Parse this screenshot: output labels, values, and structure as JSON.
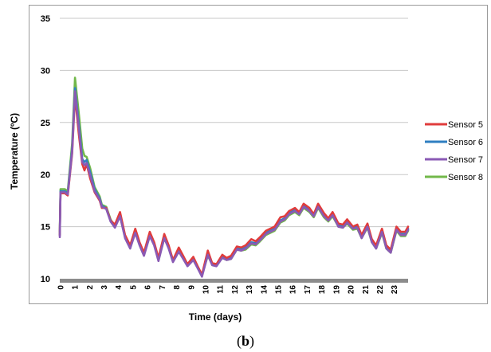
{
  "caption": {
    "open": "(",
    "label": "b",
    "close": ")"
  },
  "chart_data": {
    "type": "line",
    "title": "",
    "xlabel": "Time (days)",
    "ylabel": "Temperature (ºC)",
    "xlim": [
      0,
      24
    ],
    "ylim": [
      10,
      35
    ],
    "yticks": [
      10,
      15,
      20,
      25,
      30,
      35
    ],
    "xticks": [
      "0",
      "1",
      "2",
      "3",
      "4",
      "5",
      "6",
      "7",
      "8",
      "9",
      "10",
      "11",
      "12",
      "13",
      "14",
      "15",
      "16",
      "17",
      "18",
      "19",
      "20",
      "21",
      "22",
      "23"
    ],
    "grid": "horizontal",
    "legend_position": "right",
    "series": [
      {
        "name": "Sensor 5",
        "color": "#e03c3c",
        "x": [
          0,
          0.05,
          0.35,
          0.55,
          0.85,
          1.05,
          1.3,
          1.55,
          1.7,
          1.85,
          2.1,
          2.4,
          2.75,
          2.9,
          3.2,
          3.5,
          3.8,
          4.15,
          4.5,
          4.85,
          5.2,
          5.5,
          5.8,
          6.2,
          6.5,
          6.8,
          7.2,
          7.5,
          7.8,
          8.2,
          8.5,
          8.8,
          9.2,
          9.5,
          9.8,
          10.2,
          10.5,
          10.8,
          11.2,
          11.5,
          11.8,
          12.2,
          12.5,
          12.8,
          13.2,
          13.5,
          13.8,
          14.2,
          14.5,
          14.8,
          15.2,
          15.5,
          15.8,
          16.2,
          16.5,
          16.8,
          17.2,
          17.5,
          17.8,
          18.2,
          18.5,
          18.8,
          19.2,
          19.5,
          19.8,
          20.2,
          20.5,
          20.8,
          21.2,
          21.5,
          21.8,
          22.2,
          22.5,
          22.8,
          23.2,
          23.5,
          23.8,
          24
        ],
        "y": [
          14.2,
          18.2,
          18.2,
          18.0,
          22,
          27.6,
          24,
          21,
          20.4,
          21,
          19.6,
          18.3,
          17.5,
          16.8,
          16.8,
          15.6,
          15.2,
          16.4,
          14.2,
          13.2,
          14.8,
          13.5,
          12.5,
          14.5,
          13.5,
          12,
          14.3,
          13.2,
          11.8,
          13,
          12.2,
          11.4,
          12.1,
          11.2,
          10.4,
          12.7,
          11.5,
          11.4,
          12.3,
          12,
          12.2,
          13.1,
          13,
          13.2,
          13.8,
          13.6,
          14,
          14.6,
          14.8,
          15,
          15.9,
          16,
          16.5,
          16.8,
          16.4,
          17.2,
          16.8,
          16.2,
          17.2,
          16.3,
          15.8,
          16.4,
          15.3,
          15.2,
          15.7,
          15,
          15.2,
          14.2,
          15.3,
          13.8,
          13.2,
          14.8,
          13.2,
          12.8,
          15,
          14.5,
          14.5,
          15
        ]
      },
      {
        "name": "Sensor 6",
        "color": "#2f7fc1",
        "x": [
          0,
          0.05,
          0.35,
          0.55,
          0.85,
          1.05,
          1.3,
          1.55,
          1.7,
          1.85,
          2.1,
          2.4,
          2.75,
          2.9,
          3.2,
          3.5,
          3.8,
          4.15,
          4.5,
          4.85,
          5.2,
          5.5,
          5.8,
          6.2,
          6.5,
          6.8,
          7.2,
          7.5,
          7.8,
          8.2,
          8.5,
          8.8,
          9.2,
          9.5,
          9.8,
          10.2,
          10.5,
          10.8,
          11.2,
          11.5,
          11.8,
          12.2,
          12.5,
          12.8,
          13.2,
          13.5,
          13.8,
          14.2,
          14.5,
          14.8,
          15.2,
          15.5,
          15.8,
          16.2,
          16.5,
          16.8,
          17.2,
          17.5,
          17.8,
          18.2,
          18.5,
          18.8,
          19.2,
          19.5,
          19.8,
          20.2,
          20.5,
          20.8,
          21.2,
          21.5,
          21.8,
          22.2,
          22.5,
          22.8,
          23.2,
          23.5,
          23.8,
          24
        ],
        "y": [
          14.2,
          18.4,
          18.4,
          18.2,
          22.5,
          28.3,
          25,
          21.5,
          21.2,
          21.4,
          20.2,
          18.6,
          17.7,
          17.0,
          16.8,
          15.6,
          15.0,
          16.1,
          14.0,
          13.0,
          14.5,
          13.3,
          12.3,
          14.2,
          13.3,
          11.8,
          14.0,
          13.0,
          11.7,
          12.7,
          12.0,
          11.3,
          11.9,
          11.1,
          10.3,
          12.4,
          11.4,
          11.3,
          12.1,
          11.9,
          12.0,
          12.9,
          12.8,
          13.0,
          13.5,
          13.4,
          13.8,
          14.4,
          14.6,
          14.8,
          15.6,
          15.8,
          16.3,
          16.6,
          16.3,
          17.0,
          16.6,
          16.1,
          17.0,
          16.1,
          15.7,
          16.2,
          15.1,
          15.0,
          15.5,
          14.9,
          15.0,
          14.0,
          15.1,
          13.6,
          13.0,
          14.6,
          13.0,
          12.6,
          14.8,
          14.3,
          14.3,
          14.8
        ]
      },
      {
        "name": "Sensor 7",
        "color": "#8a5ab4",
        "x": [
          0,
          0.05,
          0.35,
          0.55,
          0.85,
          1.05,
          1.3,
          1.55,
          1.7,
          1.85,
          2.1,
          2.4,
          2.75,
          2.9,
          3.2,
          3.5,
          3.8,
          4.15,
          4.5,
          4.85,
          5.2,
          5.5,
          5.8,
          6.2,
          6.5,
          6.8,
          7.2,
          7.5,
          7.8,
          8.2,
          8.5,
          8.8,
          9.2,
          9.5,
          9.8,
          10.2,
          10.5,
          10.8,
          11.2,
          11.5,
          11.8,
          12.2,
          12.5,
          12.8,
          13.2,
          13.5,
          13.8,
          14.2,
          14.5,
          14.8,
          15.2,
          15.5,
          15.8,
          16.2,
          16.5,
          16.8,
          17.2,
          17.5,
          17.8,
          18.2,
          18.5,
          18.8,
          19.2,
          19.5,
          19.8,
          20.2,
          20.5,
          20.8,
          21.2,
          21.5,
          21.8,
          22.2,
          22.5,
          22.8,
          23.2,
          23.5,
          23.8,
          24
        ],
        "y": [
          14.0,
          18.3,
          18.3,
          18.1,
          22.2,
          28.0,
          24.6,
          21.2,
          20.9,
          21.1,
          19.9,
          18.4,
          17.6,
          16.9,
          16.7,
          15.5,
          14.9,
          16.0,
          13.9,
          12.9,
          14.4,
          13.2,
          12.2,
          14.1,
          13.2,
          11.7,
          13.9,
          12.9,
          11.6,
          12.6,
          11.9,
          11.2,
          11.8,
          11.0,
          10.2,
          12.3,
          11.3,
          11.2,
          12.0,
          11.8,
          11.9,
          12.8,
          12.7,
          12.9,
          13.4,
          13.3,
          13.7,
          14.3,
          14.5,
          14.7,
          15.5,
          15.7,
          16.2,
          16.5,
          16.2,
          16.9,
          16.5,
          16.0,
          16.9,
          16.0,
          15.6,
          16.1,
          15.0,
          14.9,
          15.4,
          14.8,
          14.9,
          13.9,
          15.0,
          13.5,
          12.9,
          14.5,
          12.9,
          12.5,
          14.7,
          14.2,
          14.2,
          14.7
        ]
      },
      {
        "name": "Sensor 8",
        "color": "#72b84a",
        "x": [
          0,
          0.05,
          0.35,
          0.55,
          0.85,
          1.05,
          1.3,
          1.55,
          1.7,
          1.85,
          2.1,
          2.4,
          2.75,
          2.9,
          3.2,
          3.5,
          3.8,
          4.15,
          4.5,
          4.85,
          5.2,
          5.5,
          5.8,
          6.2,
          6.5,
          6.8,
          7.2,
          7.5,
          7.8,
          8.2,
          8.5,
          8.8,
          9.2,
          9.5,
          9.8,
          10.2,
          10.5,
          10.8,
          11.2,
          11.5,
          11.8,
          12.2,
          12.5,
          12.8,
          13.2,
          13.5,
          13.8,
          14.2,
          14.5,
          14.8,
          15.2,
          15.5,
          15.8,
          16.2,
          16.5,
          16.8,
          17.2,
          17.5,
          17.8,
          18.2,
          18.5,
          18.8,
          19.2,
          19.5,
          19.8,
          20.2,
          20.5,
          20.8,
          21.2,
          21.5,
          21.8,
          22.2,
          22.5,
          22.8,
          23.2,
          23.5,
          23.8,
          24
        ],
        "y": [
          14.5,
          18.6,
          18.6,
          18.4,
          23,
          29.3,
          26,
          22.5,
          21.8,
          21.7,
          20.6,
          18.8,
          17.9,
          17.1,
          16.9,
          15.7,
          15.0,
          16.0,
          14.0,
          13.0,
          14.4,
          13.3,
          12.3,
          14.1,
          13.3,
          11.8,
          13.9,
          13.0,
          11.7,
          12.6,
          12.0,
          11.3,
          11.8,
          11.1,
          10.4,
          12.2,
          11.4,
          11.3,
          12.0,
          11.8,
          11.9,
          12.8,
          12.7,
          12.8,
          13.3,
          13.2,
          13.6,
          14.2,
          14.4,
          14.6,
          15.4,
          15.6,
          16.1,
          16.4,
          16.1,
          16.8,
          16.4,
          15.9,
          16.8,
          15.9,
          15.5,
          16.0,
          15.0,
          14.9,
          15.3,
          14.7,
          14.8,
          13.9,
          14.9,
          13.5,
          12.9,
          14.4,
          12.9,
          12.5,
          14.6,
          14.1,
          14.1,
          14.6
        ]
      }
    ]
  }
}
